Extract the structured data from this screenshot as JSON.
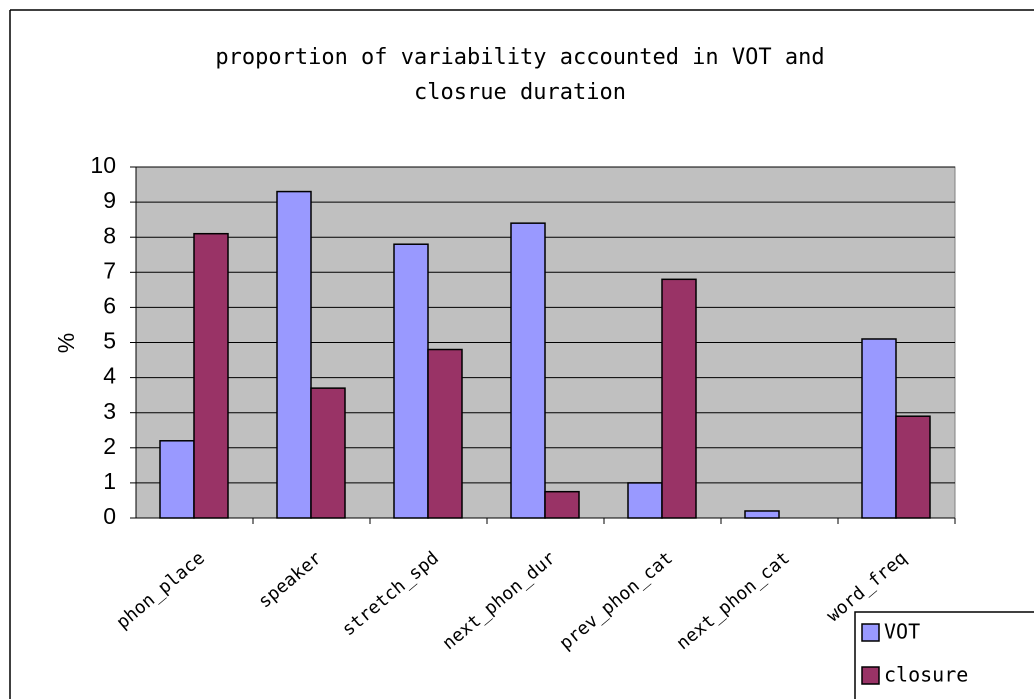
{
  "chart_data": {
    "type": "bar",
    "title": "proportion of variability accounted in VOT and closrue duration",
    "y_label": "%",
    "categories": [
      "phon_place",
      "speaker",
      "stretch_spd",
      "next_phon_dur",
      "prev_phon_cat",
      "next_phon_cat",
      "word_freq"
    ],
    "series": [
      {
        "name": "VOT",
        "color": "#9999ff",
        "values": [
          2.2,
          9.3,
          7.8,
          8.4,
          1.0,
          0.2,
          5.1
        ]
      },
      {
        "name": "closure",
        "color": "#993366",
        "values": [
          8.1,
          3.7,
          4.8,
          0.75,
          6.8,
          0,
          2.9
        ]
      }
    ],
    "ylim": [
      0,
      10
    ],
    "yticks": [
      0,
      1,
      2,
      3,
      4,
      5,
      6,
      7,
      8,
      9,
      10
    ],
    "grid": true
  }
}
